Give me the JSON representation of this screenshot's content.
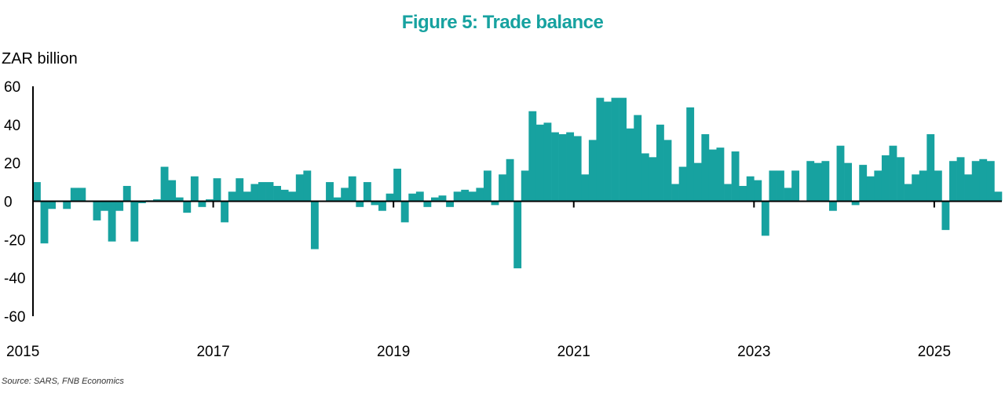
{
  "title": "Figure 5: Trade balance",
  "source": "Source: SARS, FNB Economics",
  "colors": {
    "bar": "#17A2A0",
    "title": "#17A2A0",
    "axis": "#000000"
  },
  "chart_data": {
    "type": "bar",
    "title": "Figure 5: Trade balance",
    "xlabel": "",
    "ylabel": "ZAR billion",
    "ylim": [
      -60,
      60
    ],
    "yticks": [
      60,
      40,
      20,
      0,
      -20,
      -40,
      -60
    ],
    "xticks": [
      "2015",
      "2017",
      "2019",
      "2021",
      "2023",
      "2025"
    ],
    "x_start": "2015-01",
    "grid": false,
    "series": [
      {
        "values": [
          10,
          -22,
          -4,
          0,
          -4,
          7,
          7,
          0,
          -10,
          -5,
          -21,
          -5,
          8,
          -21,
          -1,
          0.5,
          1,
          18,
          11,
          2,
          -6,
          13,
          -3,
          1,
          12,
          -11,
          5,
          12,
          5,
          9,
          10,
          10,
          8,
          6,
          5,
          14,
          16,
          -25,
          0,
          10,
          2,
          7,
          13,
          -3,
          10,
          -2,
          -5,
          4,
          17,
          -11,
          4,
          5,
          -3,
          2,
          3,
          -3,
          5,
          6,
          5,
          7,
          16,
          -2,
          14,
          22,
          -35,
          16,
          47,
          40,
          41,
          36,
          35,
          36,
          34,
          14,
          32,
          54,
          52,
          54,
          54,
          38,
          45,
          25,
          23,
          40,
          32,
          9,
          18,
          49,
          20,
          35,
          27,
          28,
          9,
          26,
          8,
          13,
          11,
          -18,
          16,
          16,
          7,
          16,
          0,
          21,
          20,
          21,
          -5,
          29,
          20,
          -2,
          19,
          13,
          16,
          24,
          29,
          23,
          9,
          14,
          16,
          35,
          16,
          -15,
          21,
          23,
          14,
          21,
          22,
          21,
          5
        ]
      }
    ]
  }
}
